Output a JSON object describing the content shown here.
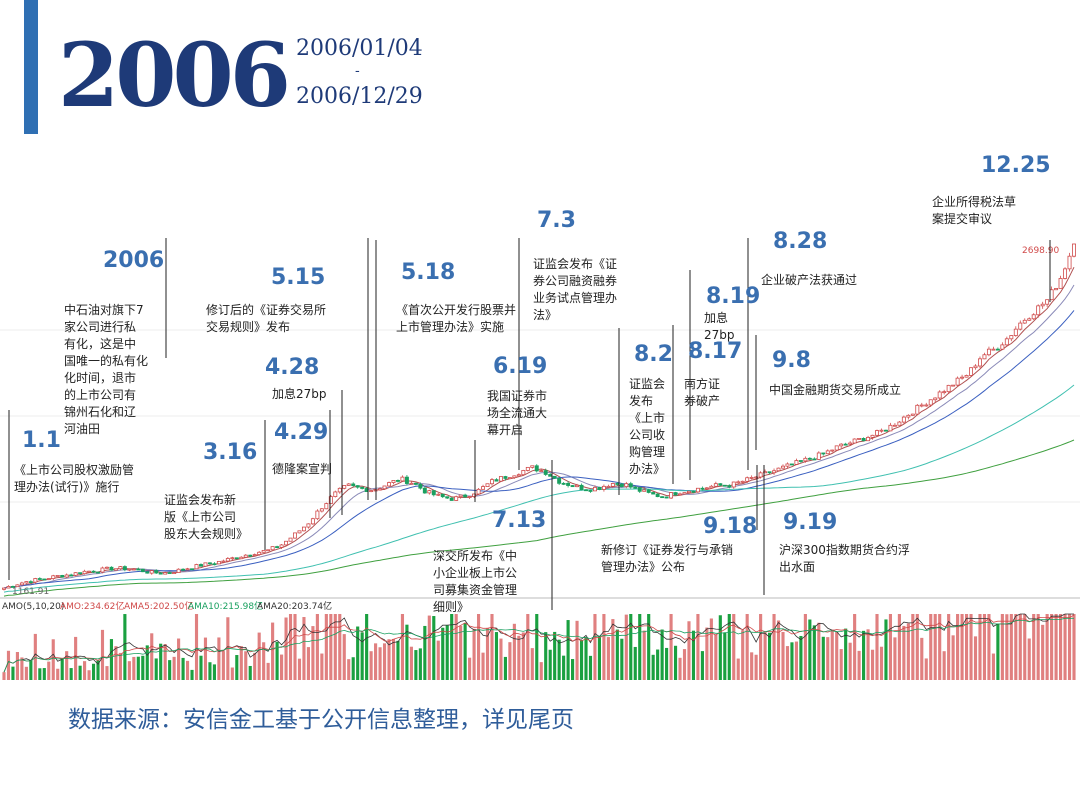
{
  "header": {
    "year": "2006",
    "start_date": "2006/01/04",
    "dash": "-",
    "end_date": "2006/12/29",
    "accent_color": "#2f6fb3",
    "title_color": "#1e3a78"
  },
  "chart_data": {
    "type": "candlestick",
    "y_low_label": "1161.91",
    "y_high_label": "2698.90",
    "y_range": [
      1161.91,
      2698.9
    ],
    "price": [
      1161.9,
      1180,
      1195,
      1203,
      1215,
      1222,
      1235,
      1240,
      1248,
      1250,
      1245,
      1232,
      1228,
      1238,
      1252,
      1265,
      1275,
      1290,
      1305,
      1320,
      1330,
      1355,
      1400,
      1450,
      1520,
      1580,
      1620,
      1606,
      1600,
      1625,
      1650,
      1630,
      1590,
      1570,
      1560,
      1575,
      1600,
      1640,
      1660,
      1680,
      1700,
      1680,
      1640,
      1620,
      1605,
      1610,
      1630,
      1625,
      1600,
      1580,
      1570,
      1590,
      1600,
      1610,
      1620,
      1622,
      1640,
      1660,
      1680,
      1700,
      1720,
      1740,
      1760,
      1790,
      1810,
      1830,
      1850,
      1880,
      1920,
      1960,
      2000,
      2040,
      2080,
      2120,
      2200,
      2230,
      2280,
      2350,
      2400,
      2450,
      2550,
      2698.9
    ],
    "moving_averages": [
      {
        "name": "MA5",
        "color": "#b05050"
      },
      {
        "name": "MA10",
        "color": "#8a8ab8"
      },
      {
        "name": "MA20",
        "color": "#3a5fc0"
      },
      {
        "name": "MA60",
        "color": "#40c0b0"
      },
      {
        "name": "MA120",
        "color": "#40a040"
      }
    ],
    "up_color": "#d04a4a",
    "down_color": "#1aa060",
    "volume_legend": {
      "label": "AMO(5,10,20)",
      "amo": "AMO:234.62亿",
      "amas": "AMA5:202.50亿",
      "ama10": "AMA10:215.98亿",
      "ama20": "AMA20:203.74亿"
    }
  },
  "events": [
    {
      "date": "1.1",
      "text": "《上市公司股权激励管\n理办法(试行)》施行",
      "line_x": 9
    },
    {
      "date": "2006",
      "text": "中石油对旗下7\n家公司进行私\n有化，这是中\n国唯一的私有化\n化时间，退市\n的上市公司有\n锦州石化和辽\n河油田",
      "line_x": 166
    },
    {
      "date": "3.16",
      "text": "证监会发布新\n版《上市公司\n股东大会规则》",
      "line_x": 265
    },
    {
      "date": "4.28",
      "text": "加息27bp",
      "line_x": 330
    },
    {
      "date": "4.29",
      "text": "德隆案宣判",
      "line_x": 342
    },
    {
      "date": "5.15",
      "text": "修订后的《证券交易所\n交易规则》发布",
      "line_x": 368
    },
    {
      "date": "5.18",
      "text": "《首次公开发行股票并\n上市管理办法》实施",
      "line_x": 376
    },
    {
      "date": "6.19",
      "text": "我国证券市\n场全流通大\n幕开启",
      "line_x": 475
    },
    {
      "date": "7.3",
      "text": "证监会发布《证\n券公司融资融券\n业务试点管理办\n法》",
      "line_x": 519
    },
    {
      "date": "7.13",
      "text": "深交所发布《中\n小企业板上市公\n司募集资金管理\n细则》",
      "line_x": 552
    },
    {
      "date": "8.2",
      "text": "证监会\n发布\n《上市\n公司收\n购管理\n办法》",
      "line_x": 619
    },
    {
      "date": "8.17",
      "text": "南方证\n券破产",
      "line_x": 673
    },
    {
      "date": "8.19",
      "text": "加息\n27bp",
      "line_x": 690
    },
    {
      "date": "8.28",
      "text": "企业破产法获通过",
      "line_x": 748
    },
    {
      "date": "9.18",
      "text": "新修订《证券发行与承销\n管理办法》公布",
      "line_x": 757
    },
    {
      "date": "9.8",
      "text": "中国金融期货交易所成立",
      "line_x": 756
    },
    {
      "date": "9.19",
      "text": "沪深300指数期货合约浮\n出水面",
      "line_x": 764
    },
    {
      "date": "12.25",
      "text": "企业所得税法草\n案提交审议",
      "line_x": 1050
    }
  ],
  "footer": {
    "source": "数据来源：安信金工基于公开信息整理，详见尾页"
  }
}
